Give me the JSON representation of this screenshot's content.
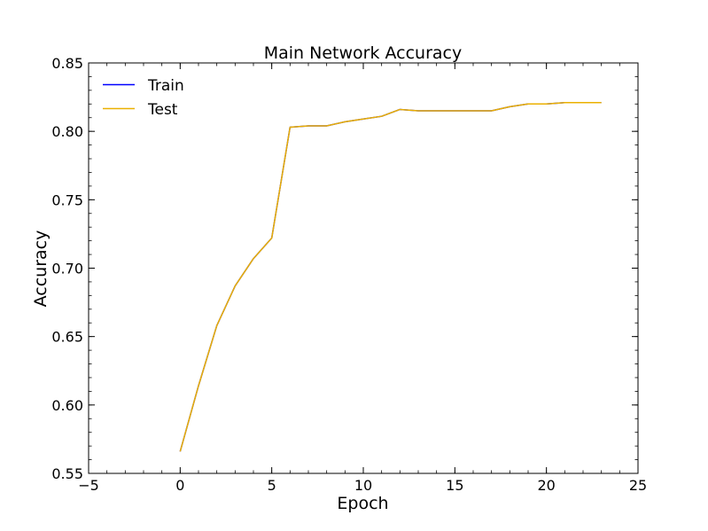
{
  "chart_data": {
    "type": "line",
    "title": "Main Network Accuracy",
    "xlabel": "Epoch",
    "ylabel": "Accuracy",
    "xlim": [
      -5,
      25
    ],
    "ylim": [
      0.55,
      0.85
    ],
    "xticks": [
      "−5",
      "0",
      "5",
      "10",
      "15",
      "20",
      "25"
    ],
    "yticks": [
      "0.55",
      "0.60",
      "0.65",
      "0.70",
      "0.75",
      "0.80",
      "0.85"
    ],
    "grid": false,
    "legend_position": "top-left",
    "x": [
      0,
      1,
      2,
      3,
      4,
      5,
      6,
      7,
      8,
      9,
      10,
      11,
      12,
      13,
      14,
      15,
      16,
      17,
      18,
      19,
      20,
      21,
      22,
      23
    ],
    "series": [
      {
        "name": "Train",
        "color": "#0000ff",
        "values": [
          0.566,
          0.614,
          0.658,
          0.687,
          0.707,
          0.722,
          0.803,
          0.804,
          0.804,
          0.807,
          0.809,
          0.811,
          0.816,
          0.815,
          0.815,
          0.815,
          0.815,
          0.815,
          0.818,
          0.82,
          0.82,
          0.821,
          0.821,
          0.821
        ]
      },
      {
        "name": "Test",
        "color": "#ebb000",
        "values": [
          0.566,
          0.614,
          0.658,
          0.687,
          0.707,
          0.722,
          0.803,
          0.804,
          0.804,
          0.807,
          0.809,
          0.811,
          0.816,
          0.815,
          0.815,
          0.815,
          0.815,
          0.815,
          0.818,
          0.82,
          0.82,
          0.821,
          0.821,
          0.821
        ]
      }
    ]
  }
}
